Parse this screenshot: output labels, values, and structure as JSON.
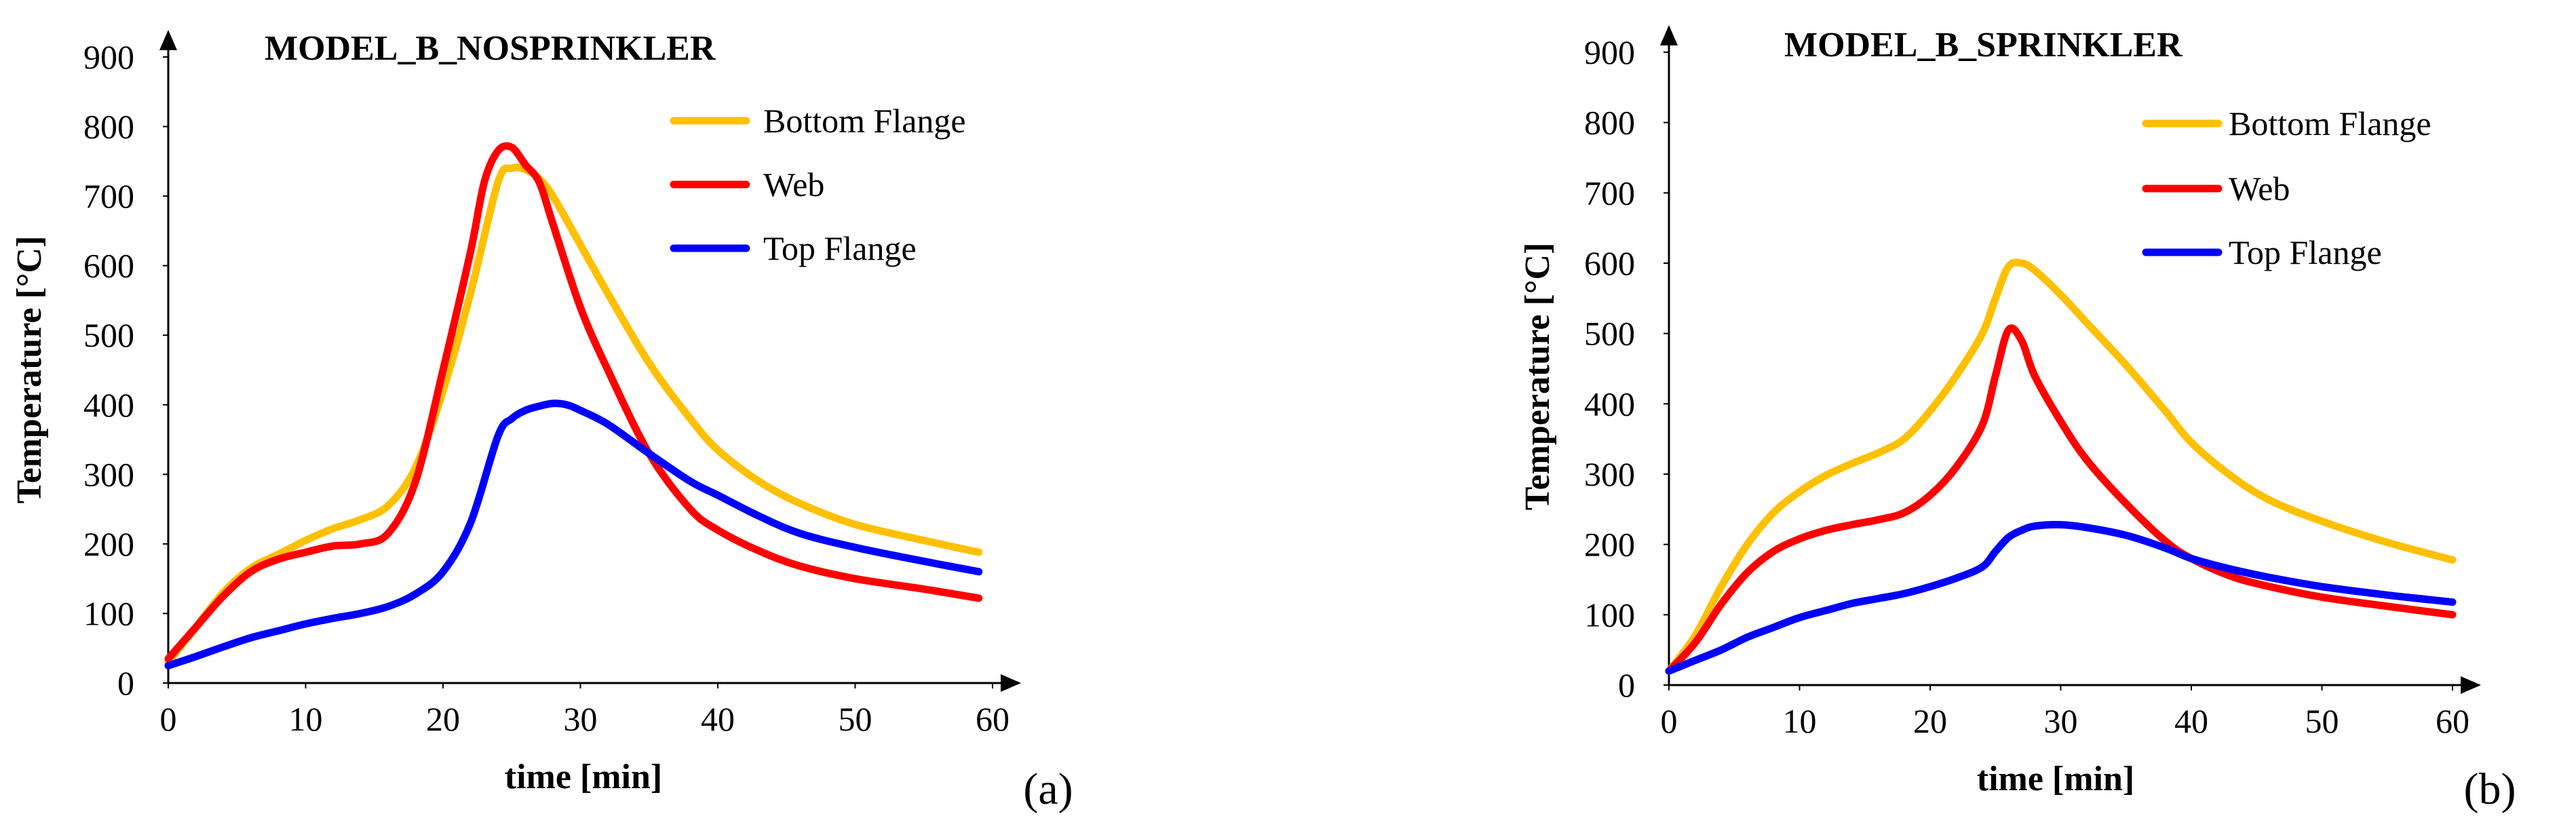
{
  "colors": {
    "bottom_flange": "#FFC000",
    "web": "#FF0000",
    "top_flange": "#0000FF",
    "axis": "#000000"
  },
  "chart_data": [
    {
      "type": "line",
      "title": "MODEL_B_NOSPRINKLER",
      "xlabel": "time  [min]",
      "ylabel": "Temperature  [°C]",
      "xlim": [
        0,
        60
      ],
      "ylim": [
        0,
        900
      ],
      "xticks": [
        "0",
        "10",
        "20",
        "30",
        "40",
        "50",
        "60"
      ],
      "yticks": [
        "0",
        "100",
        "200",
        "300",
        "400",
        "500",
        "600",
        "700",
        "800",
        "900"
      ],
      "legend_position": "top-right",
      "panel_label": "(a)",
      "series": [
        {
          "name": "Bottom Flange",
          "color_key": "bottom_flange",
          "x": [
            0,
            2,
            4,
            6,
            8,
            10,
            12,
            14,
            16,
            18,
            20,
            22,
            24,
            25,
            26,
            27,
            28,
            30,
            32,
            35,
            38,
            40,
            43,
            46,
            50,
            55,
            59
          ],
          "y": [
            30,
            80,
            130,
            165,
            185,
            205,
            222,
            235,
            255,
            310,
            420,
            560,
            720,
            740,
            738,
            725,
            700,
            630,
            560,
            460,
            380,
            335,
            290,
            258,
            228,
            205,
            188
          ]
        },
        {
          "name": "Web",
          "color_key": "web",
          "x": [
            0,
            2,
            4,
            6,
            8,
            10,
            12,
            14,
            16,
            18,
            20,
            22,
            23,
            24,
            25,
            26,
            27,
            28,
            30,
            32,
            35,
            38,
            40,
            43,
            46,
            50,
            55,
            59
          ],
          "y": [
            35,
            80,
            125,
            160,
            178,
            188,
            197,
            200,
            215,
            290,
            450,
            620,
            720,
            765,
            770,
            745,
            720,
            660,
            540,
            450,
            330,
            250,
            220,
            190,
            168,
            150,
            135,
            122
          ]
        },
        {
          "name": "Top Flange",
          "color_key": "top_flange",
          "x": [
            0,
            2,
            4,
            6,
            8,
            10,
            12,
            14,
            16,
            18,
            20,
            22,
            24,
            25,
            26,
            27,
            28,
            29,
            30,
            32,
            35,
            38,
            40,
            43,
            46,
            50,
            55,
            59
          ],
          "y": [
            25,
            38,
            52,
            65,
            75,
            85,
            93,
            100,
            110,
            128,
            160,
            230,
            355,
            380,
            392,
            398,
            402,
            400,
            392,
            372,
            330,
            290,
            270,
            240,
            215,
            195,
            175,
            160
          ]
        }
      ]
    },
    {
      "type": "line",
      "title": "MODEL_B_SPRINKLER",
      "xlabel": "time  [min]",
      "ylabel": "Temperature  [°C]",
      "xlim": [
        0,
        60
      ],
      "ylim": [
        0,
        900
      ],
      "xticks": [
        "0",
        "10",
        "20",
        "30",
        "40",
        "50",
        "60"
      ],
      "yticks": [
        "0",
        "100",
        "200",
        "300",
        "400",
        "500",
        "600",
        "700",
        "800",
        "900"
      ],
      "legend_position": "top-right",
      "panel_label": "(b)",
      "series": [
        {
          "name": "Bottom Flange",
          "color_key": "bottom_flange",
          "x": [
            0,
            2,
            4,
            6,
            8,
            10,
            12,
            14,
            16,
            18,
            20,
            22,
            24,
            25,
            26,
            27,
            28,
            30,
            32,
            35,
            38,
            40,
            43,
            46,
            50,
            55,
            60
          ],
          "y": [
            20,
            70,
            140,
            200,
            245,
            275,
            298,
            315,
            330,
            350,
            390,
            440,
            500,
            550,
            595,
            600,
            590,
            555,
            515,
            455,
            390,
            345,
            298,
            263,
            233,
            203,
            178
          ]
        },
        {
          "name": "Web",
          "color_key": "web",
          "x": [
            0,
            2,
            4,
            6,
            8,
            10,
            12,
            14,
            16,
            18,
            20,
            22,
            24,
            25,
            26,
            27,
            28,
            30,
            32,
            35,
            38,
            40,
            43,
            46,
            50,
            55,
            60
          ],
          "y": [
            20,
            60,
            115,
            160,
            190,
            208,
            220,
            228,
            235,
            245,
            270,
            310,
            370,
            440,
            505,
            490,
            440,
            375,
            320,
            258,
            205,
            180,
            155,
            140,
            125,
            112,
            100
          ]
        },
        {
          "name": "Top Flange",
          "color_key": "top_flange",
          "x": [
            0,
            2,
            4,
            6,
            8,
            10,
            12,
            14,
            16,
            18,
            20,
            22,
            24,
            25,
            26,
            27,
            28,
            30,
            32,
            35,
            38,
            40,
            43,
            46,
            50,
            55,
            60
          ],
          "y": [
            20,
            35,
            50,
            68,
            82,
            96,
            106,
            116,
            123,
            130,
            140,
            152,
            168,
            190,
            210,
            220,
            226,
            228,
            224,
            213,
            195,
            180,
            165,
            153,
            140,
            128,
            118
          ]
        }
      ]
    }
  ]
}
